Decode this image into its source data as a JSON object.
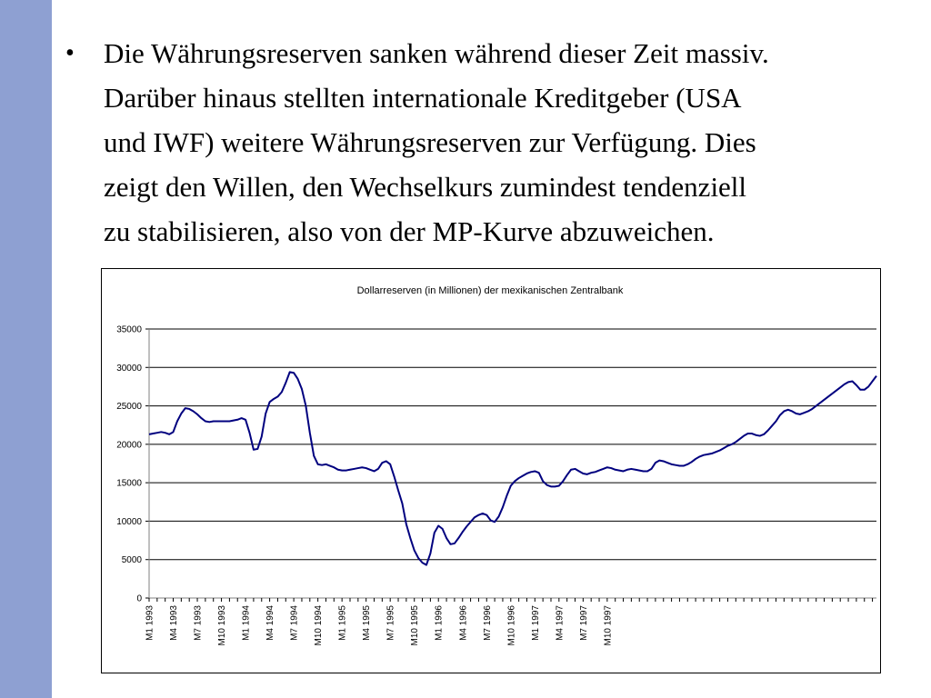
{
  "slide": {
    "bullet_marker": "•",
    "lines": [
      "Die Währungsreserven sanken während dieser Zeit massiv.",
      "Darüber hinaus stellten internationale Kreditgeber (USA",
      "und IWF) weitere Währungsreserven zur Verfügung. Dies",
      "zeigt den Willen, den Wechselkurs zumindest tendenziell",
      "zu stabilisieren, also von der MP-Kurve abzuweichen."
    ]
  },
  "colors": {
    "sidebar": "#8ea0d2",
    "line": "#00007f",
    "grid": "#000000"
  },
  "chart_data": {
    "type": "line",
    "title": "Dollarreserven (in Millionen) der mexikanischen Zentralbank",
    "xlabel": "",
    "ylabel": "",
    "ylim": [
      0,
      35000
    ],
    "yticks": [
      0,
      5000,
      10000,
      15000,
      20000,
      25000,
      30000,
      35000
    ],
    "grid": "horizontal",
    "legend": "none",
    "x_tick_labels": [
      "M1 1993",
      "M4 1993",
      "M7 1993",
      "M10 1993",
      "M1 1994",
      "M4 1994",
      "M7 1994",
      "M10 1994",
      "M1 1995",
      "M4 1995",
      "M7 1995",
      "M10 1995",
      "M1 1996",
      "M4 1996",
      "M7 1996",
      "M10 1996",
      "M1 1997",
      "M4 1997",
      "M7 1997",
      "M10 1997"
    ],
    "x_start": "1993-01",
    "x_interval": "half-month",
    "series": [
      {
        "values": [
          21300,
          21400,
          21500,
          21600,
          21500,
          21300,
          21600,
          23000,
          24000,
          24700,
          24600,
          24300,
          23900,
          23400,
          23000,
          22900,
          23000,
          23000,
          23000,
          23000,
          23000,
          23100,
          23200,
          23400,
          23200,
          21500,
          19300,
          19400,
          21000,
          24000,
          25500,
          25900,
          26200,
          26800,
          28000,
          29400,
          29300,
          28500,
          27200,
          25000,
          21500,
          18500,
          17400,
          17300,
          17400,
          17200,
          17000,
          16700,
          16600,
          16600,
          16700,
          16800,
          16900,
          17000,
          16900,
          16700,
          16500,
          16800,
          17600,
          17800,
          17400,
          15800,
          14000,
          12300,
          9600,
          7800,
          6200,
          5200,
          4600,
          4300,
          5800,
          8500,
          9400,
          9000,
          7800,
          7000,
          7100,
          7800,
          8600,
          9300,
          9900,
          10500,
          10800,
          11000,
          10800,
          10100,
          9900,
          10600,
          11800,
          13300,
          14600,
          15200,
          15600,
          15900,
          16200,
          16400,
          16500,
          16300,
          15200,
          14700,
          14500,
          14500,
          14600,
          15200,
          16000,
          16700,
          16800,
          16500,
          16200,
          16100,
          16300,
          16400,
          16600,
          16800,
          17000,
          16900,
          16700,
          16600,
          16500,
          16700,
          16800,
          16700,
          16600,
          16500,
          16500,
          16800,
          17600,
          17900,
          17800,
          17600,
          17400,
          17300,
          17200,
          17200,
          17400,
          17700,
          18100,
          18400,
          18600,
          18700,
          18800,
          19000,
          19200,
          19500,
          19800,
          20000,
          20300,
          20700,
          21100,
          21400,
          21400,
          21200,
          21100,
          21300,
          21800,
          22400,
          23000,
          23800,
          24300,
          24500,
          24300,
          24000,
          23900,
          24100,
          24300,
          24600,
          25000,
          25400,
          25800,
          26200,
          26600,
          27000,
          27400,
          27800,
          28100,
          28200,
          27700,
          27100,
          27100,
          27500,
          28200,
          28900
        ]
      }
    ]
  }
}
